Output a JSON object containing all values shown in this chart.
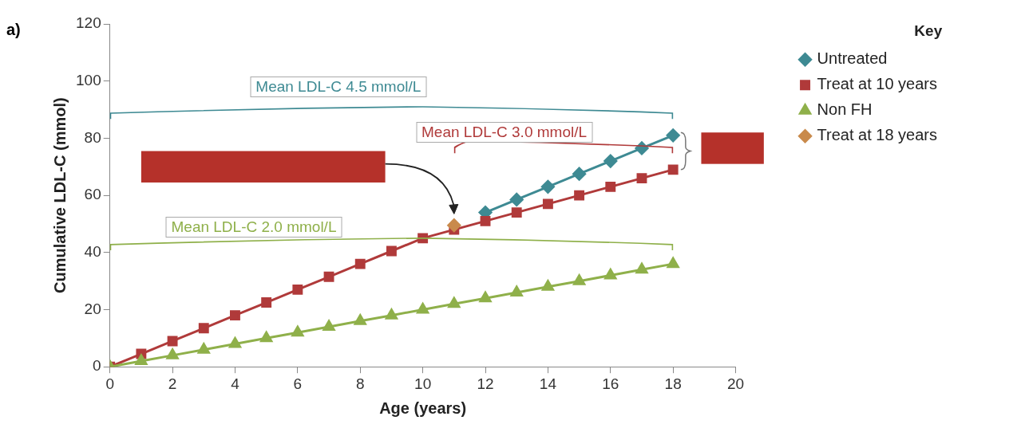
{
  "chart_data": {
    "type": "line",
    "xlabel": "Age (years)",
    "ylabel": "Cumulative LDL-C (mmol)",
    "legend_title": "Key",
    "legend": "top right",
    "grid": false,
    "x": [
      0,
      1,
      2,
      3,
      4,
      5,
      6,
      7,
      8,
      9,
      10,
      11,
      12,
      13,
      14,
      15,
      16,
      17,
      18
    ],
    "xlim": [
      0,
      20
    ],
    "xticks": [
      0,
      2,
      4,
      6,
      8,
      10,
      12,
      14,
      16,
      18,
      20
    ],
    "ylim": [
      0,
      120
    ],
    "yticks": [
      0,
      20,
      40,
      60,
      80,
      100,
      120
    ],
    "series": [
      {
        "name": "Untreated",
        "color": "#3e8a93",
        "marker": "diamond",
        "values": [
          null,
          null,
          null,
          null,
          null,
          null,
          null,
          null,
          null,
          null,
          null,
          null,
          54,
          58.5,
          63,
          67.5,
          72,
          76.5,
          81
        ]
      },
      {
        "name": "Treat at 10 years",
        "color": "#b03a3a",
        "marker": "square",
        "values": [
          0,
          4.5,
          9,
          13.5,
          18,
          22.5,
          27,
          31.5,
          36,
          40.5,
          45,
          48,
          51,
          54,
          57,
          60,
          63,
          66,
          69
        ]
      },
      {
        "name": "Non FH",
        "color": "#8fb04a",
        "marker": "triangle",
        "values": [
          0,
          2,
          4,
          6,
          8,
          10,
          12,
          14,
          16,
          18,
          20,
          22,
          24,
          26,
          28,
          30,
          32,
          34,
          36
        ]
      },
      {
        "name": "Treat at 18 years",
        "color": "#c98a4b",
        "marker": "diamond",
        "values": [
          null,
          null,
          null,
          null,
          null,
          null,
          null,
          null,
          null,
          null,
          null,
          49.5,
          null,
          null,
          null,
          null,
          null,
          null,
          null
        ]
      }
    ],
    "annotations": [
      "a)",
      "Mean LDL-C 4.5 mmol/L",
      "Mean LDL-C 3.0 mmol/L",
      "Mean LDL-C 2.0 mmol/L"
    ]
  }
}
